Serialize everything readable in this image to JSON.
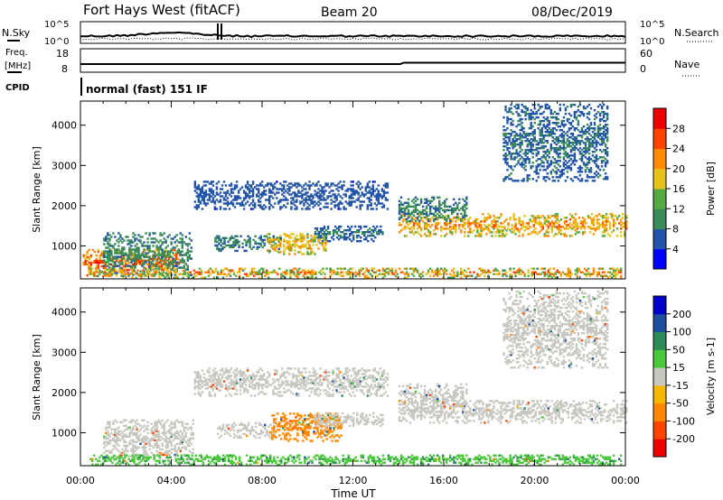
{
  "header": {
    "station": "Fort Hays West (fitACF)",
    "beam": "Beam 20",
    "date": "08/Dec/2019"
  },
  "strip_noise": {
    "left_label": "N.Sky",
    "right_label": "N.Search",
    "left_ticks": [
      "10^5",
      "10^0"
    ],
    "right_ticks": [
      "10^5",
      "10^0"
    ]
  },
  "strip_freq": {
    "left_label_1": "Freq.",
    "left_label_2": "[MHz]",
    "right_label": "Nave",
    "left_ticks": [
      "18",
      "8"
    ],
    "right_ticks": [
      "60",
      "0"
    ]
  },
  "cpid": {
    "label": "CPID",
    "mode": "normal (fast) 151 IF"
  },
  "x_axis": {
    "ticks": [
      "00:00",
      "04:00",
      "08:00",
      "12:00",
      "16:00",
      "20:00",
      "00:00"
    ],
    "label": "Time UT"
  },
  "colors": {
    "power": [
      "#0000ff",
      "#2255aa",
      "#3b8a5a",
      "#55aa44",
      "#e6c21a",
      "#ff8c00",
      "#ff4400",
      "#ee0000"
    ],
    "velocity": [
      "#ee0000",
      "#ff4400",
      "#ff8800",
      "#f5b700",
      "#c8c8c0",
      "#4cc83c",
      "#2e8b57",
      "#1e4f9e",
      "#0000cc"
    ]
  },
  "chart_data": [
    {
      "type": "heatmap",
      "name": "power",
      "ylabel": "Slant Range [km]",
      "xlabel": "Time UT",
      "xlim": [
        0,
        24
      ],
      "ylim": [
        180,
        4600
      ],
      "yticks": [
        1000,
        2000,
        3000,
        4000
      ],
      "colorbar": {
        "label": "Power [dB]",
        "range": [
          0,
          32
        ],
        "ticks": [
          4,
          8,
          12,
          16,
          20,
          24,
          28
        ]
      },
      "regions": [
        {
          "t0": 0.1,
          "t1": 4.4,
          "r0": 250,
          "r1": 900,
          "min": 14,
          "max": 30
        },
        {
          "t0": 1.0,
          "t1": 4.9,
          "r0": 260,
          "r1": 1320,
          "min": 4,
          "max": 13
        },
        {
          "t0": 5.9,
          "t1": 8.8,
          "r0": 860,
          "r1": 1260,
          "min": 4,
          "max": 12
        },
        {
          "t0": 8.2,
          "t1": 10.8,
          "r0": 780,
          "r1": 1300,
          "min": 10,
          "max": 24
        },
        {
          "t0": 10.3,
          "t1": 13.3,
          "r0": 1100,
          "r1": 1480,
          "min": 3,
          "max": 10
        },
        {
          "t0": 14.0,
          "t1": 24.0,
          "r0": 1230,
          "r1": 1780,
          "min": 10,
          "max": 26
        },
        {
          "t0": 14.0,
          "t1": 17.0,
          "r0": 1600,
          "r1": 2200,
          "min": 4,
          "max": 12
        },
        {
          "t0": 0.4,
          "t1": 23.8,
          "r0": 190,
          "r1": 440,
          "min": 4,
          "max": 28
        },
        {
          "t0": 5.0,
          "t1": 13.5,
          "r0": 1900,
          "r1": 2600,
          "min": 3,
          "max": 8
        },
        {
          "t0": 18.6,
          "t1": 23.2,
          "r0": 2600,
          "r1": 4500,
          "min": 3,
          "max": 10
        }
      ]
    },
    {
      "type": "heatmap",
      "name": "velocity",
      "ylabel": "Slant Range [km]",
      "xlabel": "Time UT",
      "xlim": [
        0,
        24
      ],
      "ylim": [
        180,
        4600
      ],
      "yticks": [
        1000,
        2000,
        3000,
        4000
      ],
      "colorbar": {
        "label": "Velocity [m s-1]",
        "ticks": [
          200,
          100,
          50,
          15,
          -15,
          -50,
          -100,
          -200
        ]
      },
      "regions": [
        {
          "t0": 1.0,
          "t1": 5.0,
          "r0": 300,
          "r1": 1320,
          "v": 0
        },
        {
          "t0": 6.0,
          "t1": 8.6,
          "r0": 860,
          "r1": 1260,
          "v": 0
        },
        {
          "t0": 8.4,
          "t1": 11.5,
          "r0": 780,
          "r1": 1500,
          "v": -60
        },
        {
          "t0": 10.3,
          "t1": 13.3,
          "r0": 1150,
          "r1": 1480,
          "v": 0
        },
        {
          "t0": 14.0,
          "t1": 24.0,
          "r0": 1230,
          "r1": 1780,
          "v": 0
        },
        {
          "t0": 14.0,
          "t1": 17.0,
          "r0": 1600,
          "r1": 2200,
          "v": 0
        },
        {
          "t0": 0.4,
          "t1": 23.8,
          "r0": 190,
          "r1": 440,
          "v": 25
        },
        {
          "t0": 5.0,
          "t1": 13.5,
          "r0": 1900,
          "r1": 2600,
          "v": 0
        },
        {
          "t0": 18.6,
          "t1": 23.2,
          "r0": 2600,
          "r1": 4500,
          "v": 0
        }
      ]
    }
  ]
}
